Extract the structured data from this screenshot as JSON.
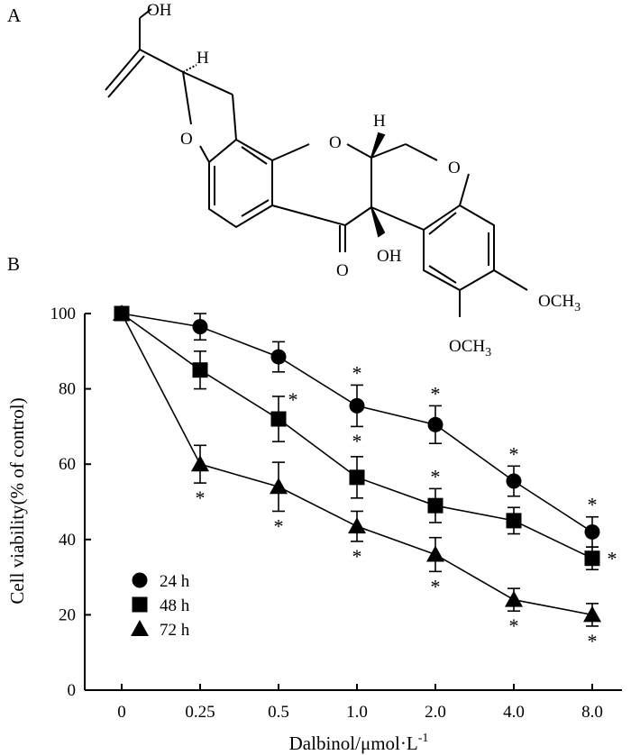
{
  "panels": {
    "a_label": "A",
    "b_label": "B"
  },
  "structure": {
    "atoms": {
      "oh_top": "OH",
      "h_left": "H",
      "o_furan": "O",
      "o_pyran": "O",
      "h_right": "H",
      "o_chromene": "O",
      "oh_mid": "OH",
      "o_ketone": "O",
      "ome_1": "OCH",
      "ome_2": "OCH",
      "sub3": "3"
    }
  },
  "colors": {
    "ink": "#000000",
    "background": "#ffffff"
  },
  "chart_data": {
    "type": "line",
    "categories": [
      "0",
      "0.25",
      "0.5",
      "1.0",
      "2.0",
      "4.0",
      "8.0"
    ],
    "xlabel": "Dalbinol/μmol·L",
    "xlabel_sup": "-1",
    "ylabel": "Cell viability(% of control)",
    "yticks": [
      "0",
      "20",
      "40",
      "60",
      "80",
      "100"
    ],
    "ylim": [
      0,
      100
    ],
    "grid": false,
    "legend_position": "bottom-left",
    "significance_marker": "*",
    "series": [
      {
        "name": "24 h",
        "marker": "circle",
        "values": [
          100,
          96.5,
          88.5,
          75.5,
          70.5,
          55.5,
          42
        ],
        "errors": [
          0,
          3.5,
          4,
          5.5,
          5,
          4,
          4
        ],
        "significant": [
          false,
          false,
          false,
          true,
          true,
          true,
          true
        ],
        "star_position": "above"
      },
      {
        "name": "48 h",
        "marker": "square",
        "values": [
          100,
          85,
          72,
          56.5,
          49,
          45,
          35
        ],
        "errors": [
          0,
          5,
          6,
          5.5,
          4.5,
          3.5,
          3
        ],
        "significant": [
          false,
          false,
          true,
          true,
          true,
          false,
          true
        ],
        "star_position": "mixed"
      },
      {
        "name": "72 h",
        "marker": "triangle",
        "values": [
          100,
          60,
          54,
          43.5,
          36,
          24,
          20
        ],
        "errors": [
          0,
          5,
          6.5,
          4,
          4.5,
          3,
          3
        ],
        "significant": [
          false,
          true,
          true,
          true,
          true,
          true,
          true
        ],
        "star_position": "below"
      }
    ]
  }
}
